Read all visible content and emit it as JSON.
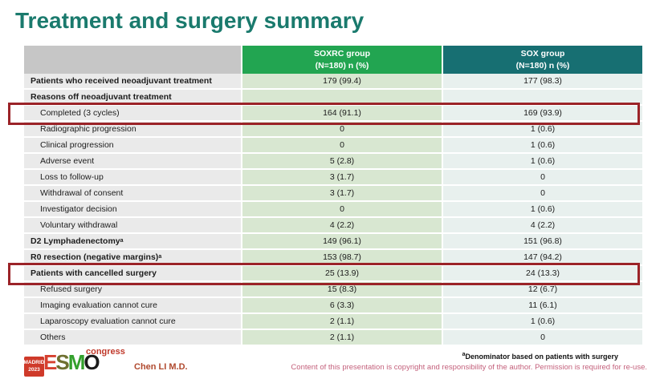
{
  "slide": {
    "title": "Treatment and surgery summary"
  },
  "table": {
    "headers": {
      "label_col": "",
      "soxrc": {
        "line1": "SOXRC group",
        "line2": "(N=180)  n (%)"
      },
      "sox": {
        "line1": "SOX group",
        "line2": "(N=180)  n (%)"
      }
    },
    "rows": [
      {
        "label": "Patients who received neoadjuvant treatment",
        "bold": true,
        "indent": false,
        "soxrc": "179 (99.4)",
        "sox": "177 (98.3)",
        "highlight": false
      },
      {
        "label": "Reasons off neoadjuvant treatment",
        "bold": true,
        "indent": false,
        "soxrc": "",
        "sox": "",
        "highlight": false
      },
      {
        "label": "Completed (3 cycles)",
        "bold": false,
        "indent": true,
        "soxrc": "164 (91.1)",
        "sox": "169 (93.9)",
        "highlight": true
      },
      {
        "label": "Radiographic progression",
        "bold": false,
        "indent": true,
        "soxrc": "0",
        "sox": "1 (0.6)",
        "highlight": false
      },
      {
        "label": "Clinical progression",
        "bold": false,
        "indent": true,
        "soxrc": "0",
        "sox": "1 (0.6)",
        "highlight": false
      },
      {
        "label": "Adverse event",
        "bold": false,
        "indent": true,
        "soxrc": "5 (2.8)",
        "sox": "1 (0.6)",
        "highlight": false
      },
      {
        "label": "Loss to follow-up",
        "bold": false,
        "indent": true,
        "soxrc": "3 (1.7)",
        "sox": "0",
        "highlight": false
      },
      {
        "label": "Withdrawal of consent",
        "bold": false,
        "indent": true,
        "soxrc": "3 (1.7)",
        "sox": "0",
        "highlight": false
      },
      {
        "label": "Investigator decision",
        "bold": false,
        "indent": true,
        "soxrc": "0",
        "sox": "1 (0.6)",
        "highlight": false
      },
      {
        "label": "Voluntary withdrawal",
        "bold": false,
        "indent": true,
        "soxrc": "4 (2.2)",
        "sox": "4 (2.2)",
        "highlight": false
      },
      {
        "label": "D2 Lymphadenectomy",
        "sup": "a",
        "bold": true,
        "indent": false,
        "soxrc": "149 (96.1)",
        "sox": "151 (96.8)",
        "highlight": false
      },
      {
        "label": "R0 resection (negative margins)",
        "sup": "a",
        "bold": true,
        "indent": false,
        "soxrc": "153 (98.7)",
        "sox": "147 (94.2)",
        "highlight": false
      },
      {
        "label": "Patients with cancelled surgery",
        "bold": true,
        "indent": false,
        "soxrc": "25 (13.9)",
        "sox": "24 (13.3)",
        "highlight": true
      },
      {
        "label": "Refused surgery",
        "bold": false,
        "indent": true,
        "soxrc": "15 (8.3)",
        "sox": "12 (6.7)",
        "highlight": false
      },
      {
        "label": "Imaging evaluation cannot cure",
        "bold": false,
        "indent": true,
        "soxrc": "6 (3.3)",
        "sox": "11 (6.1)",
        "highlight": false
      },
      {
        "label": "Laparoscopy evaluation cannot cure",
        "bold": false,
        "indent": true,
        "soxrc": "2 (1.1)",
        "sox": "1 (0.6)",
        "highlight": false
      },
      {
        "label": "Others",
        "bold": false,
        "indent": true,
        "soxrc": "2 (1.1)",
        "sox": "0",
        "highlight": false
      }
    ]
  },
  "footer": {
    "logo": {
      "badge_line1": "MADRID",
      "badge_line2": "2023",
      "letters": [
        {
          "ch": "E",
          "color": "#d6402f"
        },
        {
          "ch": "S",
          "color": "#6f7030"
        },
        {
          "ch": "M",
          "color": "#33a02c"
        },
        {
          "ch": "O",
          "color": "#1a1a1a"
        }
      ],
      "congress": "congress"
    },
    "author": "Chen LI M.D.",
    "footnote_sup": "a",
    "footnote": "Denominator based on patients with surgery",
    "copyright": "Content of this presentation is copyright and responsibility of the author. Permission is required for re-use."
  },
  "colors": {
    "title_teal": "#1a7a6d",
    "soxrc_green": "#22a551",
    "sox_teal": "#176f72",
    "header_gray": "#c6c6c6",
    "soxrc_cell": "#d8e7d1",
    "sox_cell": "#e8f0ee",
    "label_cell": "#eaeaea",
    "highlight_red": "#9b2328",
    "copyright_pink": "#c4617c",
    "author_red": "#b0492e"
  }
}
